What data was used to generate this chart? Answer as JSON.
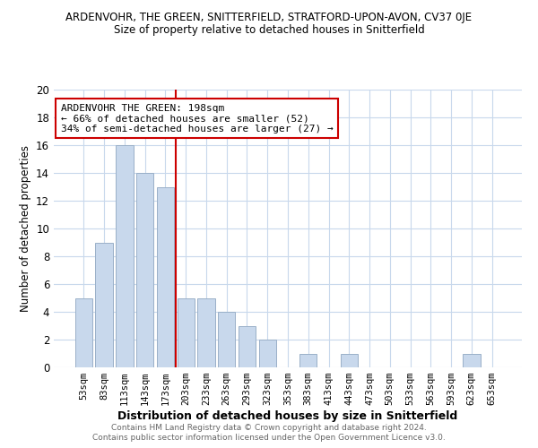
{
  "title": "ARDENVOHR, THE GREEN, SNITTERFIELD, STRATFORD-UPON-AVON, CV37 0JE",
  "subtitle": "Size of property relative to detached houses in Snitterfield",
  "xlabel": "Distribution of detached houses by size in Snitterfield",
  "ylabel": "Number of detached properties",
  "footer_line1": "Contains HM Land Registry data © Crown copyright and database right 2024.",
  "footer_line2": "Contains public sector information licensed under the Open Government Licence v3.0.",
  "bar_labels": [
    "53sqm",
    "83sqm",
    "113sqm",
    "143sqm",
    "173sqm",
    "203sqm",
    "233sqm",
    "263sqm",
    "293sqm",
    "323sqm",
    "353sqm",
    "383sqm",
    "413sqm",
    "443sqm",
    "473sqm",
    "503sqm",
    "533sqm",
    "563sqm",
    "593sqm",
    "623sqm",
    "653sqm"
  ],
  "bar_values": [
    5,
    9,
    16,
    14,
    13,
    5,
    5,
    4,
    3,
    2,
    0,
    1,
    0,
    1,
    0,
    0,
    0,
    0,
    0,
    1,
    0
  ],
  "bar_color": "#c8d8ec",
  "bar_edge_color": "#9ab0c8",
  "grid_color": "#c8d8ec",
  "vline_index": 4.5,
  "annotation_line1": "ARDENVOHR THE GREEN: 198sqm",
  "annotation_line2": "← 66% of detached houses are smaller (52)",
  "annotation_line3": "34% of semi-detached houses are larger (27) →",
  "annotation_box_facecolor": "#ffffff",
  "annotation_box_edgecolor": "#cc0000",
  "vline_color": "#cc0000",
  "ylim": [
    0,
    20
  ],
  "yticks": [
    0,
    2,
    4,
    6,
    8,
    10,
    12,
    14,
    16,
    18,
    20
  ],
  "background_color": "#ffffff",
  "plot_bg_color": "#ffffff"
}
